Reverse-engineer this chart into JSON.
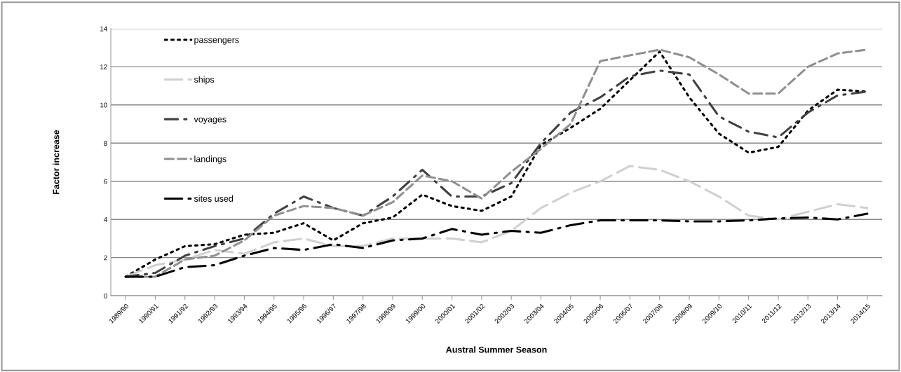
{
  "chart_data": {
    "type": "line",
    "xlabel": "Austral Summer Season",
    "ylabel": "Factor increase",
    "categories": [
      "1989/90",
      "1990/91",
      "1991/92",
      "1992/93",
      "1993/94",
      "1994/95",
      "1995/96",
      "1996/97",
      "1997/98",
      "1998/99",
      "1999/00",
      "2000/01",
      "2001/02",
      "2002/03",
      "2003/04",
      "2004/05",
      "2005/06",
      "2006/07",
      "2007/08",
      "2008/09",
      "2009/10",
      "2010/11",
      "2011/12",
      "2012/13",
      "2013/14",
      "2014/15"
    ],
    "series": [
      {
        "name": "passengers",
        "color": "#000000",
        "line_style": "dotted",
        "values": [
          1.0,
          1.9,
          2.6,
          2.7,
          3.2,
          3.3,
          3.8,
          2.9,
          3.8,
          4.1,
          5.3,
          4.7,
          4.45,
          5.2,
          7.9,
          8.8,
          9.8,
          11.3,
          12.8,
          10.4,
          8.5,
          7.5,
          7.8,
          9.7,
          10.8,
          10.7
        ]
      },
      {
        "name": "ships",
        "color": "#d0d0d0",
        "line_style": "longdash",
        "values": [
          1.0,
          1.6,
          1.9,
          2.4,
          2.2,
          2.8,
          3.0,
          2.6,
          2.6,
          3.0,
          3.0,
          3.0,
          2.8,
          3.4,
          4.6,
          5.4,
          6.0,
          6.8,
          6.6,
          6.0,
          5.2,
          4.2,
          4.0,
          4.4,
          4.8,
          4.6
        ]
      },
      {
        "name": "voyages",
        "color": "#404040",
        "line_style": "dashdot",
        "values": [
          1.0,
          1.2,
          2.1,
          2.6,
          3.0,
          4.3,
          5.2,
          4.6,
          4.2,
          5.2,
          6.6,
          5.2,
          5.2,
          5.9,
          8.0,
          9.6,
          10.4,
          11.5,
          11.8,
          11.6,
          9.4,
          8.6,
          8.3,
          9.6,
          10.5,
          10.7
        ]
      },
      {
        "name": "landings",
        "color": "#909090",
        "line_style": "dashed",
        "values": [
          1.0,
          1.0,
          1.9,
          2.1,
          2.9,
          4.2,
          4.7,
          4.6,
          4.2,
          4.9,
          6.3,
          6.0,
          5.1,
          6.5,
          7.7,
          9.0,
          12.3,
          12.6,
          12.9,
          12.5,
          11.6,
          10.6,
          10.6,
          12.0,
          12.7,
          12.9
        ]
      },
      {
        "name": "sites used",
        "color": "#000000",
        "line_style": "longdashdot",
        "values": [
          1.0,
          1.0,
          1.5,
          1.6,
          2.1,
          2.5,
          2.4,
          2.7,
          2.5,
          2.9,
          3.0,
          3.5,
          3.2,
          3.4,
          3.3,
          3.7,
          3.95,
          3.95,
          3.95,
          3.9,
          3.9,
          3.95,
          4.05,
          4.1,
          4.0,
          4.3
        ]
      }
    ],
    "ylim": [
      0,
      14
    ],
    "yticks": [
      0,
      2,
      4,
      6,
      8,
      10,
      12,
      14
    ],
    "grid": "y",
    "legend": "top left"
  }
}
